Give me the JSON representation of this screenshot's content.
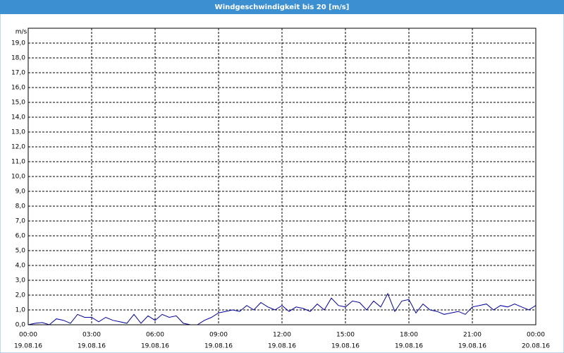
{
  "chart_data": {
    "type": "line",
    "title": "Windgeschwindigkeit bis 20 [m/s]",
    "y_label": "m/s",
    "x": [
      "2016-08-19T00:00",
      "2016-08-19T00:20",
      "2016-08-19T00:40",
      "2016-08-19T01:00",
      "2016-08-19T01:20",
      "2016-08-19T01:40",
      "2016-08-19T02:00",
      "2016-08-19T02:20",
      "2016-08-19T02:40",
      "2016-08-19T03:00",
      "2016-08-19T03:20",
      "2016-08-19T03:40",
      "2016-08-19T04:00",
      "2016-08-19T04:20",
      "2016-08-19T04:40",
      "2016-08-19T05:00",
      "2016-08-19T05:20",
      "2016-08-19T05:40",
      "2016-08-19T06:00",
      "2016-08-19T06:20",
      "2016-08-19T06:40",
      "2016-08-19T07:00",
      "2016-08-19T07:20",
      "2016-08-19T07:40",
      "2016-08-19T08:00",
      "2016-08-19T08:20",
      "2016-08-19T08:40",
      "2016-08-19T09:00",
      "2016-08-19T09:20",
      "2016-08-19T09:40",
      "2016-08-19T10:00",
      "2016-08-19T10:20",
      "2016-08-19T10:40",
      "2016-08-19T11:00",
      "2016-08-19T11:20",
      "2016-08-19T11:40",
      "2016-08-19T12:00",
      "2016-08-19T12:20",
      "2016-08-19T12:40",
      "2016-08-19T13:00",
      "2016-08-19T13:20",
      "2016-08-19T13:40",
      "2016-08-19T14:00",
      "2016-08-19T14:20",
      "2016-08-19T14:40",
      "2016-08-19T15:00",
      "2016-08-19T15:20",
      "2016-08-19T15:40",
      "2016-08-19T16:00",
      "2016-08-19T16:20",
      "2016-08-19T16:40",
      "2016-08-19T17:00",
      "2016-08-19T17:20",
      "2016-08-19T17:40",
      "2016-08-19T18:00",
      "2016-08-19T18:20",
      "2016-08-19T18:40",
      "2016-08-19T19:00",
      "2016-08-19T19:20",
      "2016-08-19T19:40",
      "2016-08-19T20:00",
      "2016-08-19T20:20",
      "2016-08-19T20:40",
      "2016-08-19T21:00",
      "2016-08-19T21:20",
      "2016-08-19T21:40",
      "2016-08-19T22:00",
      "2016-08-19T22:20",
      "2016-08-19T22:40",
      "2016-08-19T23:00",
      "2016-08-19T23:20",
      "2016-08-19T23:40",
      "2016-08-20T00:00"
    ],
    "series": [
      {
        "color": "#0000a0",
        "values": [
          0.0,
          0.1,
          0.15,
          0.0,
          0.4,
          0.3,
          0.1,
          0.7,
          0.5,
          0.5,
          0.2,
          0.5,
          0.3,
          0.2,
          0.1,
          0.7,
          0.1,
          0.6,
          0.3,
          0.7,
          0.5,
          0.6,
          0.1,
          0.0,
          0.0,
          0.3,
          0.5,
          0.8,
          0.9,
          1.0,
          0.9,
          1.3,
          1.0,
          1.5,
          1.2,
          1.0,
          1.3,
          0.9,
          1.2,
          1.1,
          0.9,
          1.4,
          1.0,
          1.8,
          1.3,
          1.2,
          1.6,
          1.5,
          1.0,
          1.6,
          1.2,
          2.1,
          0.9,
          1.6,
          1.7,
          0.8,
          1.4,
          1.0,
          0.9,
          0.7,
          0.8,
          0.9,
          0.7,
          1.2,
          1.3,
          1.4,
          1.0,
          1.3,
          1.2,
          1.4,
          1.2,
          1.0,
          1.3
        ]
      }
    ],
    "xlim": [
      "2016-08-19T00:00",
      "2016-08-20T00:00"
    ],
    "xticks": [
      {
        "value": "2016-08-19T00:00",
        "label": "00:00"
      },
      {
        "value": "2016-08-19T03:00",
        "label": "03:00"
      },
      {
        "value": "2016-08-19T06:00",
        "label": "06:00"
      },
      {
        "value": "2016-08-19T09:00",
        "label": "09:00"
      },
      {
        "value": "2016-08-19T12:00",
        "label": "12:00"
      },
      {
        "value": "2016-08-19T15:00",
        "label": "15:00"
      },
      {
        "value": "2016-08-19T18:00",
        "label": "18:00"
      },
      {
        "value": "2016-08-19T21:00",
        "label": "21:00"
      },
      {
        "value": "2016-08-20T00:00",
        "label": "00:00"
      }
    ],
    "xtick_dates": [
      "19.08.16",
      "19.08.16",
      "19.08.16",
      "19.08.16",
      "19.08.16",
      "19.08.16",
      "19.08.16",
      "19.08.16",
      "20.08.16"
    ],
    "ylim": [
      0,
      20
    ],
    "yticks": [
      {
        "value": 0,
        "label": "0,0"
      },
      {
        "value": 1,
        "label": "1,0"
      },
      {
        "value": 2,
        "label": "2,0"
      },
      {
        "value": 3,
        "label": "3,0"
      },
      {
        "value": 4,
        "label": "4,0"
      },
      {
        "value": 5,
        "label": "5,0"
      },
      {
        "value": 6,
        "label": "6,0"
      },
      {
        "value": 7,
        "label": "7,0"
      },
      {
        "value": 8,
        "label": "8,0"
      },
      {
        "value": 9,
        "label": "9,0"
      },
      {
        "value": 10,
        "label": "10,0"
      },
      {
        "value": 11,
        "label": "11,0"
      },
      {
        "value": 12,
        "label": "12,0"
      },
      {
        "value": 13,
        "label": "13,0"
      },
      {
        "value": 14,
        "label": "14,0"
      },
      {
        "value": 15,
        "label": "15,0"
      },
      {
        "value": 16,
        "label": "16,0"
      },
      {
        "value": 17,
        "label": "17,0"
      },
      {
        "value": 18,
        "label": "18,0"
      },
      {
        "value": 19,
        "label": "19,0"
      }
    ],
    "grid": true
  }
}
